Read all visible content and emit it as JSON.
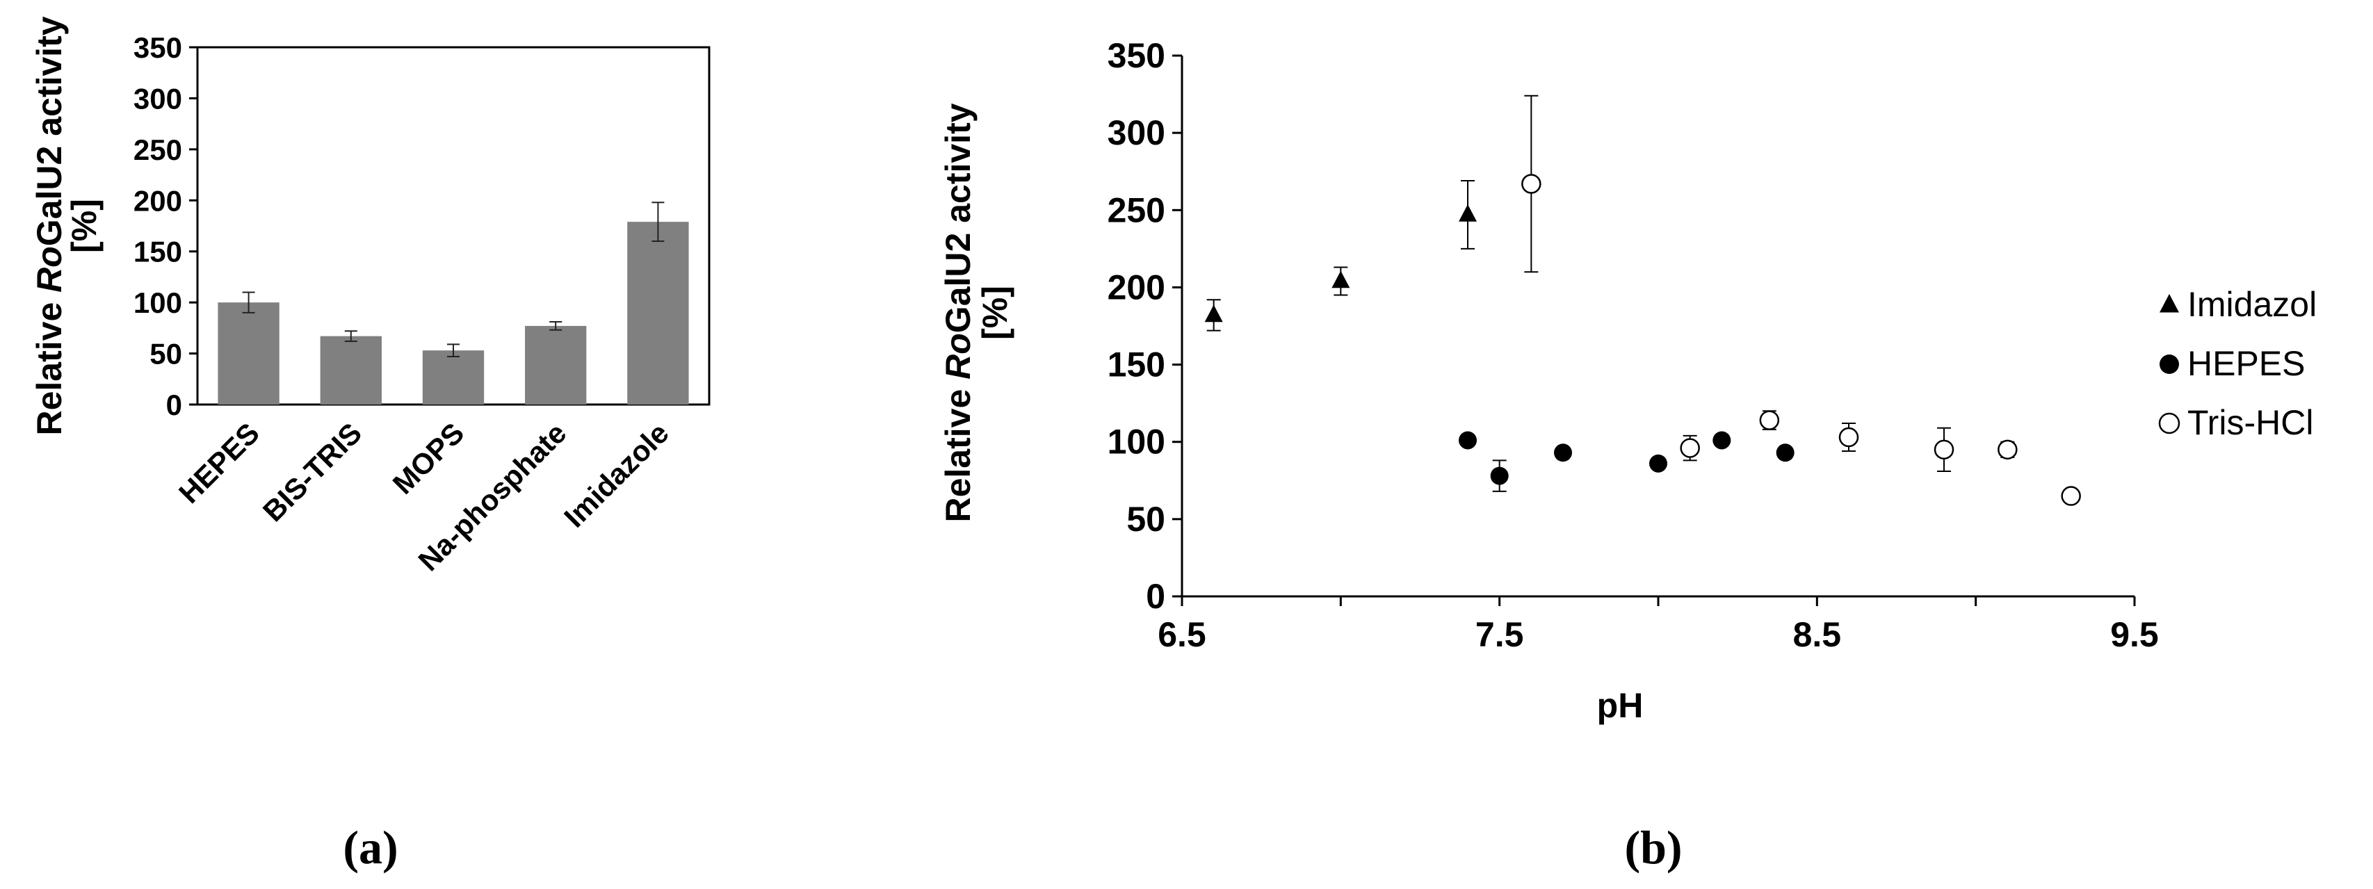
{
  "chart_data": [
    {
      "type": "bar",
      "panel_label": "(a)",
      "categories": [
        "HEPES",
        "BIS-TRIS",
        "MOPS",
        "Na-phosphate",
        "Imidazole"
      ],
      "values": [
        100,
        67,
        53,
        77,
        179
      ],
      "errors": [
        10,
        5,
        6,
        4,
        19
      ],
      "ylabel_prefix": "Relative ",
      "ylabel_italic": "Ro",
      "ylabel_suffix": "GalU2 activity",
      "ylabel_line2": "[%]",
      "xlabel": "",
      "ylim": [
        0,
        350
      ],
      "yticks": [
        0,
        50,
        100,
        150,
        200,
        250,
        300,
        350
      ],
      "grid": false,
      "bar_color": "#808080"
    },
    {
      "type": "scatter",
      "panel_label": "(b)",
      "xlabel": "pH",
      "ylabel_prefix": "Relative ",
      "ylabel_italic": "Ro",
      "ylabel_suffix": "GalU2 activity",
      "ylabel_line2": "[%]",
      "xlim": [
        6.5,
        9.5
      ],
      "ylim": [
        0,
        350
      ],
      "xticks": [
        6.5,
        7.5,
        8.5,
        9.5
      ],
      "xtick_labels": [
        "6.5",
        "7.5",
        "8.5",
        "9.5"
      ],
      "yticks": [
        0,
        50,
        100,
        150,
        200,
        250,
        300,
        350
      ],
      "grid": false,
      "legend_position": "right",
      "series": [
        {
          "name": "Imidazol",
          "marker": "triangle-filled",
          "x": [
            6.6,
            7.0,
            7.4
          ],
          "y": [
            182,
            204,
            247
          ],
          "err": [
            10,
            9,
            22
          ]
        },
        {
          "name": "HEPES",
          "marker": "circle-filled",
          "x": [
            7.4,
            7.5,
            7.7,
            8.0,
            8.2,
            8.4
          ],
          "y": [
            101,
            78,
            93,
            86,
            101,
            93
          ],
          "err": [
            0,
            10,
            0,
            0,
            0,
            0
          ]
        },
        {
          "name": "Tris-HCl",
          "marker": "circle-open",
          "x": [
            7.6,
            8.1,
            8.35,
            8.6,
            8.9,
            9.1,
            9.3
          ],
          "y": [
            267,
            96,
            114,
            103,
            95,
            95,
            65
          ],
          "err": [
            57,
            8,
            6,
            9,
            14,
            5,
            3
          ]
        }
      ]
    }
  ]
}
